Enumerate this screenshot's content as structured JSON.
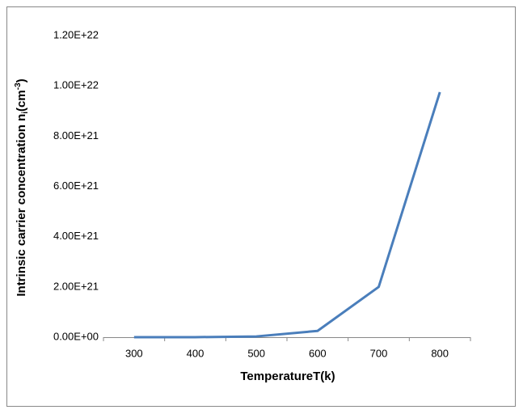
{
  "chart_data": {
    "type": "line",
    "x_label": "TemperatureT(k)",
    "y_label": {
      "text": "Intrinsic carrier concentration n",
      "subscript": "i",
      "middle": "(cm",
      "superscript": "-3",
      "end": ")"
    },
    "categories": [
      "300",
      "400",
      "500",
      "600",
      "700",
      "800"
    ],
    "series": [
      {
        "name": "ni",
        "color": "#4a7ebb",
        "values": [
          1e+16,
          1e+18,
          3e+19,
          2.5e+20,
          2e+21,
          9.75e+21
        ]
      }
    ],
    "ylim": [
      0,
      1.2e+22
    ],
    "yticks": [
      {
        "value": 0,
        "label": "0.00E+00"
      },
      {
        "value": 2e+21,
        "label": "2.00E+21"
      },
      {
        "value": 4e+21,
        "label": "4.00E+21"
      },
      {
        "value": 6e+21,
        "label": "6.00E+21"
      },
      {
        "value": 8e+21,
        "label": "8.00E+21"
      },
      {
        "value": 1e+22,
        "label": "1.00E+22"
      },
      {
        "value": 1.2e+22,
        "label": "1.20E+22"
      }
    ],
    "grid": false
  }
}
